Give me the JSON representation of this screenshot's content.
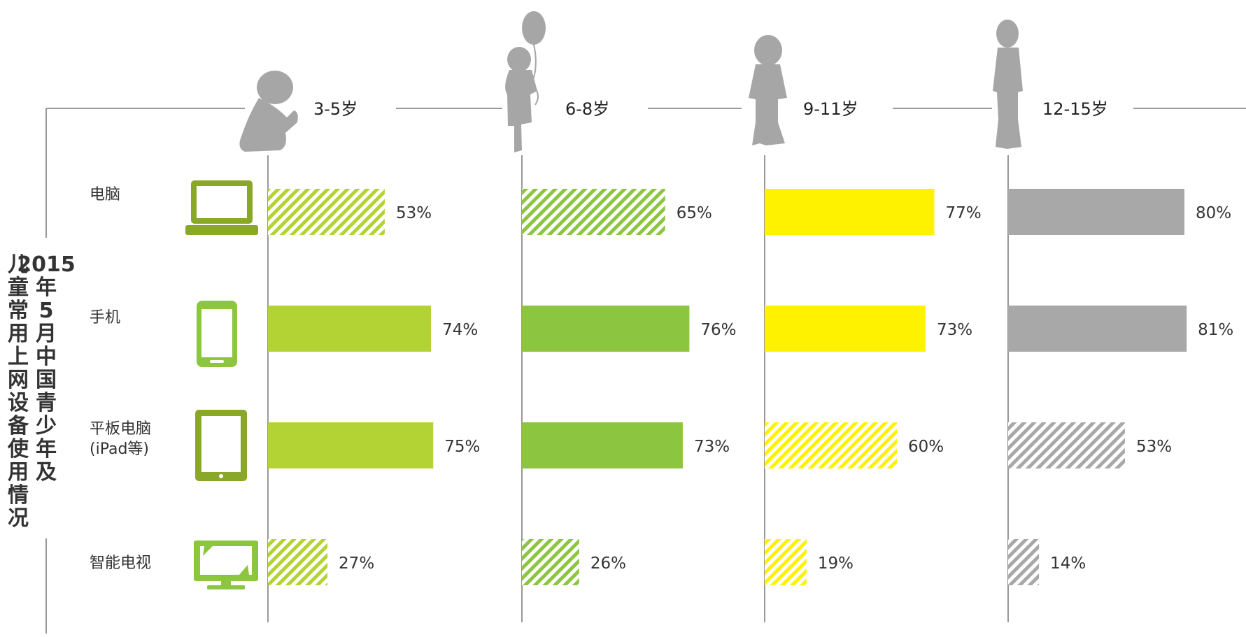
{
  "title_lines": [
    "2015年5月中国青少年及",
    "儿童常用上网设备使用情况"
  ],
  "colors": {
    "light_green": "#b3d335",
    "mid_green": "#8cc540",
    "yellow": "#fff200",
    "gray": "#a8a8a8",
    "axis": "#999999",
    "icon_dark_green": "#8aa828",
    "icon_green": "#8cc540"
  },
  "icons": [
    "laptop-icon",
    "smartphone-icon",
    "tablet-icon",
    "smart-tv-icon"
  ],
  "chart_data": {
    "type": "bar",
    "orientation": "horizontal",
    "categories": [
      "电脑",
      "手机",
      "平板电脑\n(iPad等)",
      "智能电视"
    ],
    "series": [
      {
        "name": "3-5岁",
        "values": [
          53,
          74,
          75,
          27
        ],
        "hatched": [
          true,
          false,
          false,
          true
        ],
        "color": "#b3d335"
      },
      {
        "name": "6-8岁",
        "values": [
          65,
          76,
          73,
          26
        ],
        "hatched": [
          true,
          false,
          false,
          true
        ],
        "color": "#8cc540"
      },
      {
        "name": "9-11岁",
        "values": [
          77,
          73,
          60,
          19
        ],
        "hatched": [
          false,
          false,
          true,
          true
        ],
        "color": "#fff200"
      },
      {
        "name": "12-15岁",
        "values": [
          80,
          81,
          53,
          14
        ],
        "hatched": [
          false,
          false,
          true,
          true
        ],
        "color": "#a8a8a8"
      }
    ],
    "unit": "%",
    "value_labels": [
      [
        "53%",
        "74%",
        "75%",
        "27%"
      ],
      [
        "65%",
        "76%",
        "73%",
        "26%"
      ],
      [
        "77%",
        "73%",
        "60%",
        "19%"
      ],
      [
        "80%",
        "81%",
        "53%",
        "14%"
      ]
    ]
  }
}
